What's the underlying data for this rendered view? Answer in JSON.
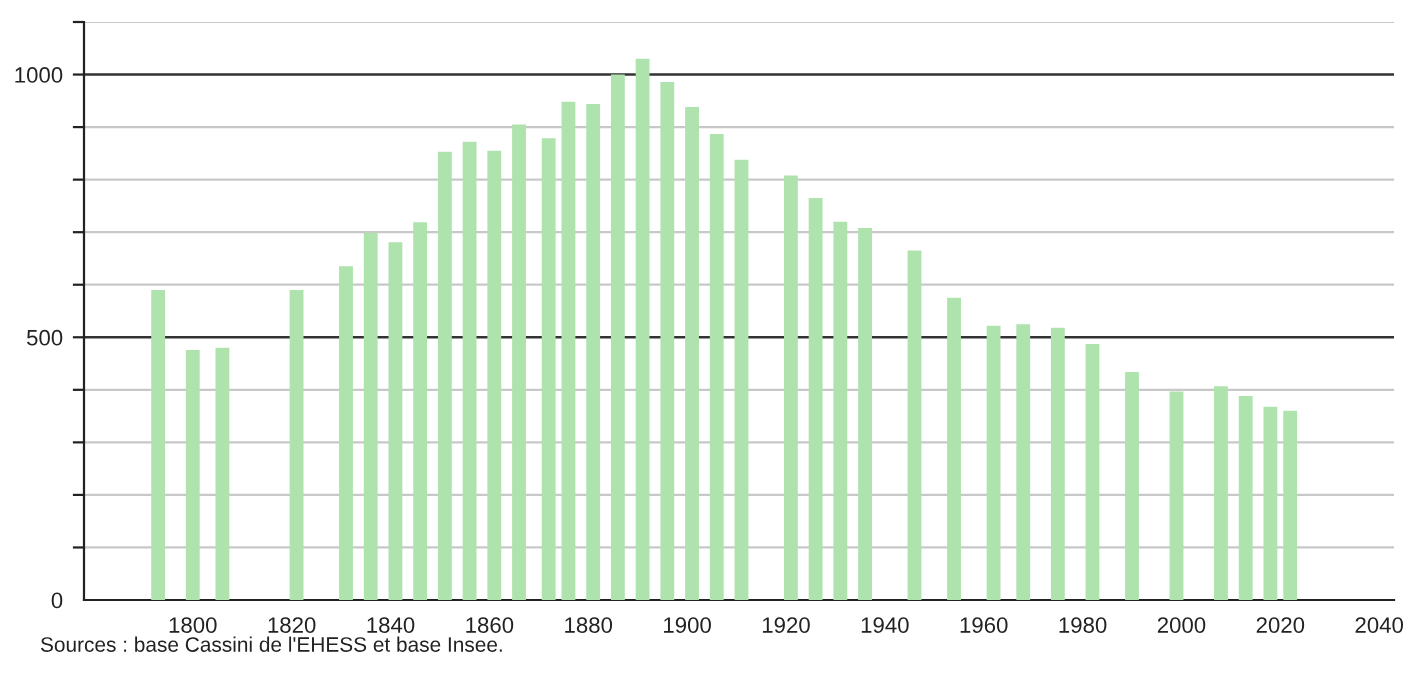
{
  "chart_data": {
    "type": "bar",
    "x": [
      1793,
      1800,
      1806,
      1821,
      1831,
      1836,
      1841,
      1846,
      1851,
      1856,
      1861,
      1866,
      1872,
      1876,
      1881,
      1886,
      1891,
      1896,
      1901,
      1906,
      1911,
      1921,
      1926,
      1931,
      1936,
      1946,
      1954,
      1962,
      1968,
      1975,
      1982,
      1990,
      1999,
      2008,
      2013,
      2018,
      2022
    ],
    "values": [
      590,
      476,
      480,
      590,
      635,
      699,
      681,
      719,
      853,
      872,
      855,
      905,
      879,
      948,
      944,
      1000,
      1030,
      986,
      938,
      887,
      838,
      808,
      765,
      720,
      708,
      665,
      575,
      522,
      525,
      518,
      487,
      434,
      397,
      407,
      388,
      368,
      360
    ],
    "color": "#aee3ae",
    "xlim": [
      1778,
      2043
    ],
    "xticks": [
      1800,
      1820,
      1840,
      1860,
      1880,
      1900,
      1920,
      1940,
      1960,
      1980,
      2000,
      2020,
      2040
    ],
    "ylim": [
      0,
      1100
    ],
    "yticks": [
      0,
      {
        "value": 100,
        "label": null
      },
      {
        "value": 200,
        "label": null
      },
      {
        "value": 300,
        "label": null
      },
      {
        "value": 400,
        "label": null
      },
      500,
      {
        "value": 600,
        "label": null
      },
      {
        "value": 700,
        "label": null
      },
      {
        "value": 800,
        "label": null
      },
      {
        "value": 900,
        "label": null
      },
      1000,
      {
        "value": 1100,
        "label": null
      }
    ],
    "grid": "y",
    "annotations": [
      "Sources : base Cassini de l'EHESS et base Insee."
    ]
  }
}
